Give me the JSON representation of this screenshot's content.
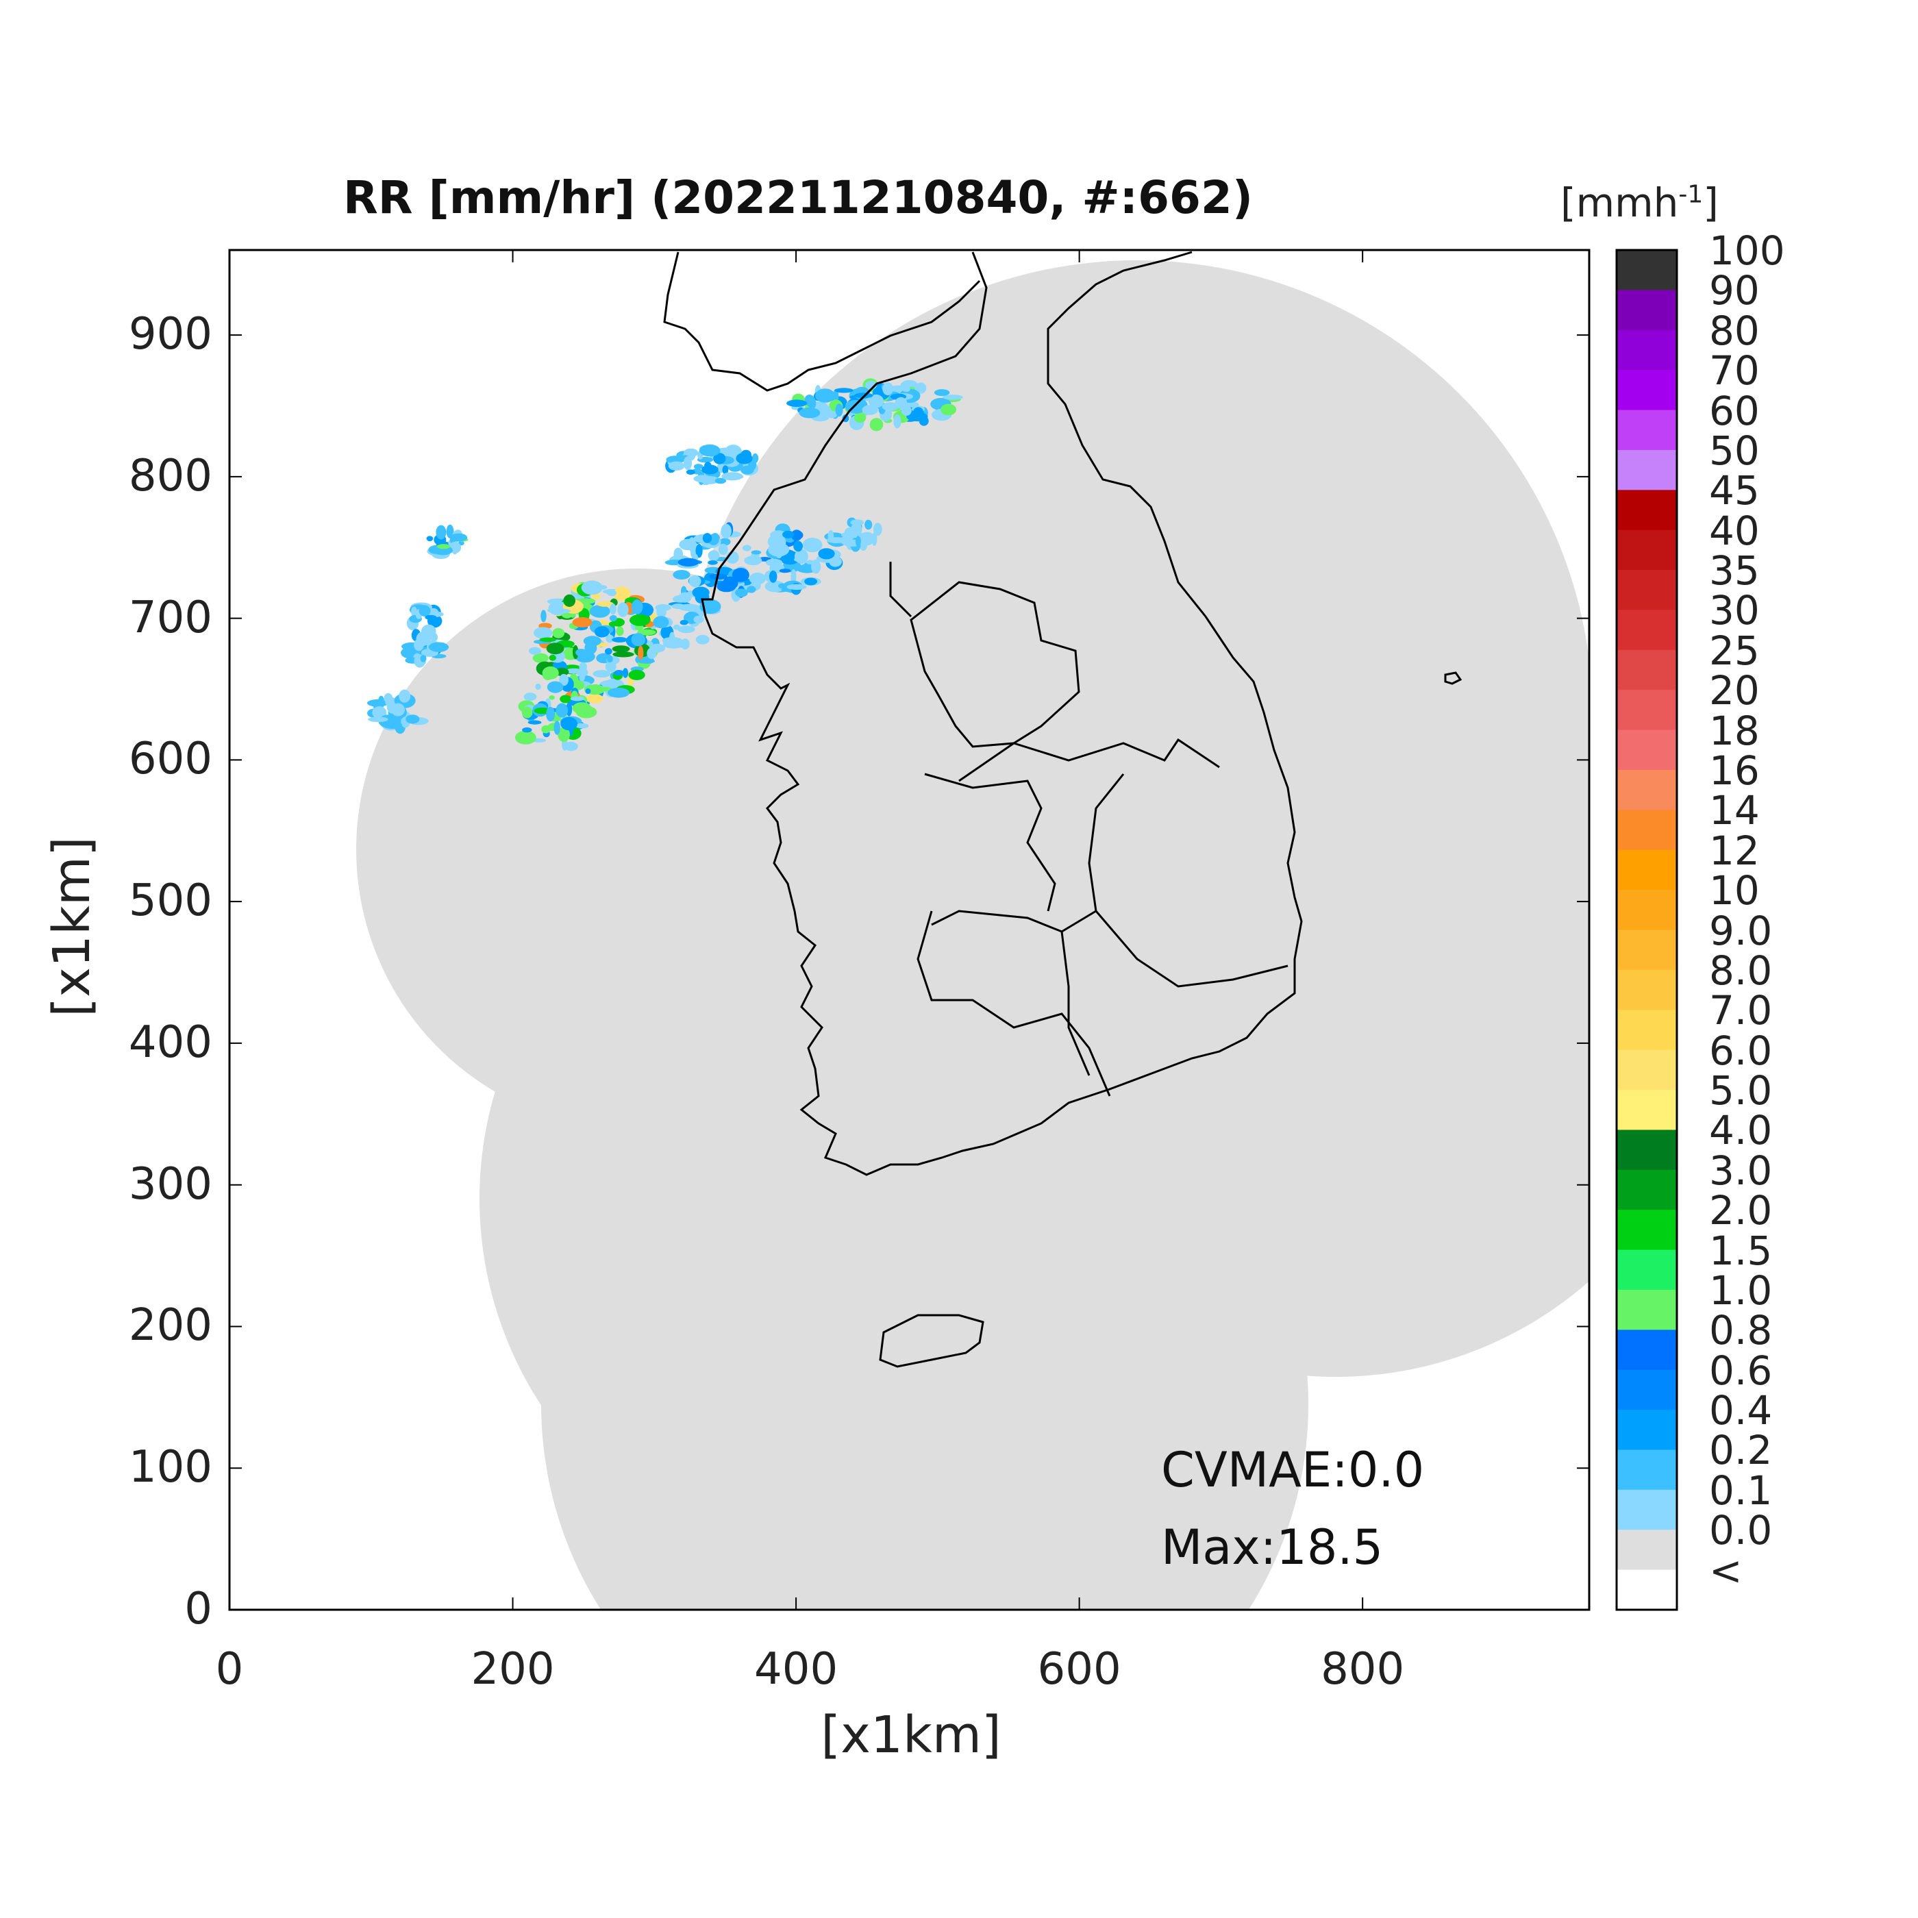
{
  "figure": {
    "title": "RR [mm/hr] (202211210840, #:662)",
    "xlabel": "[x1km]",
    "ylabel": "[x1km]",
    "xticks": [
      "0",
      "200",
      "400",
      "600",
      "800"
    ],
    "yticks": [
      "0",
      "100",
      "200",
      "300",
      "400",
      "500",
      "600",
      "700",
      "800",
      "900"
    ],
    "xlim": [
      0,
      960
    ],
    "ylim": [
      0,
      960
    ],
    "coverage_color": "#dedede",
    "coastline_color": "#000000"
  },
  "colorbar": {
    "unit_base": "[mmh",
    "unit_exp": "-1",
    "unit_close": "]",
    "labels": [
      "100",
      "90",
      "80",
      "70",
      "60",
      "50",
      "45",
      "40",
      "35",
      "30",
      "25",
      "20",
      "18",
      "16",
      "14",
      "12",
      "10",
      "9.0",
      "8.0",
      "7.0",
      "6.0",
      "5.0",
      "4.0",
      "3.0",
      "2.0",
      "1.5",
      "1.0",
      "0.8",
      "0.6",
      "0.4",
      "0.2",
      "0.1",
      "0.0",
      "<"
    ],
    "colors": [
      "#333333",
      "#7d00b8",
      "#9000d8",
      "#a400f0",
      "#c040f8",
      "#c682fa",
      "#b40000",
      "#c01414",
      "#cc2222",
      "#d83030",
      "#e04848",
      "#ea5a5a",
      "#f26e6e",
      "#f88a5c",
      "#fb8a28",
      "#fda000",
      "#fda818",
      "#fdb830",
      "#fdc840",
      "#fdd850",
      "#fee270",
      "#fff078",
      "#007d1e",
      "#00a01a",
      "#00d014",
      "#1ef064",
      "#66f466",
      "#0072ff",
      "#0088ff",
      "#00a0ff",
      "#3cc0ff",
      "#8ad8ff",
      "#dedede",
      "#ffffff"
    ]
  },
  "stats": {
    "cvmae": "CVMAE:0.0",
    "max": "Max:18.5"
  },
  "precip_palette": [
    "#8ad8ff",
    "#3cc0ff",
    "#00a0ff",
    "#0088ff",
    "#66f466",
    "#00d014",
    "#00a01a",
    "#fee270",
    "#fb8a28"
  ]
}
